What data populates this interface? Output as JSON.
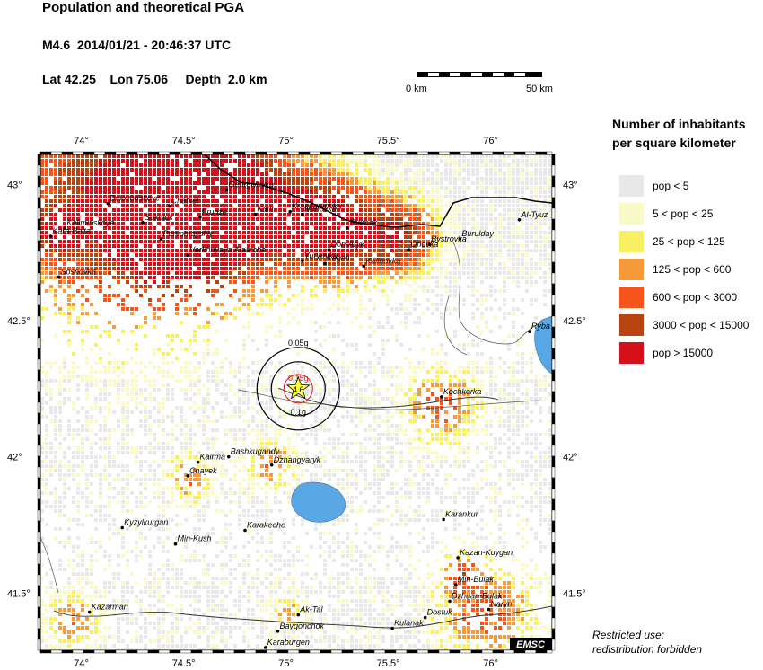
{
  "header": {
    "title": "Population and theoretical PGA",
    "event": "M4.6  2014/01/21 - 20:46:37 UTC",
    "location": "Lat 42.25    Lon 75.06     Depth  2.0 km"
  },
  "scale": {
    "start_label": "0 km",
    "end_label": "50 km"
  },
  "map": {
    "lon_ticks": [
      "74°",
      "74.5°",
      "75°",
      "75.5°",
      "76°"
    ],
    "lat_ticks": [
      "43°",
      "42.5°",
      "42°",
      "41.5°"
    ],
    "epicenter": {
      "lat": 42.25,
      "lon": 75.06,
      "magnitude_label": "4.6"
    },
    "pga_rings": [
      {
        "label": "0.05g",
        "color": "#000000"
      },
      {
        "label": "0.1g",
        "color": "#000000"
      },
      {
        "label": "0.15g",
        "color": "#e8141a"
      }
    ],
    "water_color": "#5aa7e6",
    "road_color": "#000000",
    "border_color": "#000000",
    "watermark": "EMSC",
    "cities": [
      {
        "name": "Georgiyevka",
        "lat": 42.98,
        "lon": 74.71
      },
      {
        "name": "Chatkel",
        "lat": 42.92,
        "lon": 74.43
      },
      {
        "name": "Belovodskoye",
        "lat": 42.93,
        "lon": 74.13
      },
      {
        "name": "Frunze",
        "lat": 42.88,
        "lon": 74.58
      },
      {
        "name": "Kant",
        "lat": 42.89,
        "lon": 74.85
      },
      {
        "name": "Krasnorechka",
        "lat": 42.9,
        "lon": 75.02
      },
      {
        "name": "Ivanovka",
        "lat": 42.89,
        "lon": 75.08
      },
      {
        "name": "Sokuluk",
        "lat": 42.86,
        "lon": 74.3
      },
      {
        "name": "Kaliminskoye",
        "lat": 42.84,
        "lon": 73.92
      },
      {
        "name": "Kara-Balta",
        "lat": 42.81,
        "lon": 73.85
      },
      {
        "name": "Pervomayskiy",
        "lat": 42.8,
        "lon": 74.39
      },
      {
        "name": "Tokmak",
        "lat": 42.84,
        "lon": 75.3
      },
      {
        "name": "Bystrovka",
        "lat": 42.78,
        "lon": 75.7
      },
      {
        "name": "Burulday",
        "lat": 42.8,
        "lon": 75.85
      },
      {
        "name": "Al-Tyuz",
        "lat": 42.87,
        "lon": 76.14
      },
      {
        "name": "Don-Aryk",
        "lat": 42.76,
        "lon": 75.21
      },
      {
        "name": "Orlovka",
        "lat": 42.76,
        "lon": 75.6
      },
      {
        "name": "Verkhnyaya Alaarcha",
        "lat": 42.74,
        "lon": 74.52
      },
      {
        "name": "Yuryevka",
        "lat": 42.72,
        "lon": 75.08
      },
      {
        "name": "Kegeti",
        "lat": 42.71,
        "lon": 75.19
      },
      {
        "name": "Kalinovka",
        "lat": 42.7,
        "lon": 75.38
      },
      {
        "name": "Sosnovka",
        "lat": 42.66,
        "lon": 73.89
      },
      {
        "name": "Ryba",
        "lat": 42.46,
        "lon": 76.19
      },
      {
        "name": "Kochkorka",
        "lat": 42.22,
        "lon": 75.76
      },
      {
        "name": "Bashkugandy",
        "lat": 42.0,
        "lon": 74.72
      },
      {
        "name": "Kairma",
        "lat": 41.98,
        "lon": 74.57
      },
      {
        "name": "Dzhangyaryk",
        "lat": 41.97,
        "lon": 74.93
      },
      {
        "name": "Chayek",
        "lat": 41.93,
        "lon": 74.52
      },
      {
        "name": "Kyzylkurgan",
        "lat": 41.74,
        "lon": 74.2
      },
      {
        "name": "Karakeche",
        "lat": 41.73,
        "lon": 74.8
      },
      {
        "name": "Min-Kush",
        "lat": 41.68,
        "lon": 74.46
      },
      {
        "name": "Karankur",
        "lat": 41.77,
        "lon": 75.77
      },
      {
        "name": "Kazan-Kuygan",
        "lat": 41.63,
        "lon": 75.84
      },
      {
        "name": "Min-Bulak",
        "lat": 41.53,
        "lon": 75.83
      },
      {
        "name": "Dzhuan-Bulak",
        "lat": 41.47,
        "lon": 75.8
      },
      {
        "name": "Naryn",
        "lat": 41.44,
        "lon": 75.99
      },
      {
        "name": "Kazarman",
        "lat": 41.43,
        "lon": 74.04
      },
      {
        "name": "Ak-Tal",
        "lat": 41.42,
        "lon": 75.06
      },
      {
        "name": "Dostuk",
        "lat": 41.41,
        "lon": 75.68
      },
      {
        "name": "Kulanak",
        "lat": 41.37,
        "lon": 75.52
      },
      {
        "name": "Baygonchok",
        "lat": 41.36,
        "lon": 74.96
      },
      {
        "name": "Karaburgen",
        "lat": 41.3,
        "lon": 74.9
      }
    ]
  },
  "legend": {
    "title_line1": "Number of inhabitants",
    "title_line2": "per square kilometer",
    "items": [
      {
        "label": "pop < 5",
        "color": "#e8e8e8"
      },
      {
        "label": "5 < pop < 25",
        "color": "#fafac8"
      },
      {
        "label": "25 < pop < 125",
        "color": "#f8f060"
      },
      {
        "label": "125 < pop < 600",
        "color": "#f79a3a"
      },
      {
        "label": "600 < pop < 3000",
        "color": "#f5551b"
      },
      {
        "label": "3000 < pop < 15000",
        "color": "#b8440f"
      },
      {
        "label": "pop > 15000",
        "color": "#d4101a"
      }
    ]
  },
  "notice": {
    "line1": "Restricted use:",
    "line2": "redistribution forbidden"
  }
}
